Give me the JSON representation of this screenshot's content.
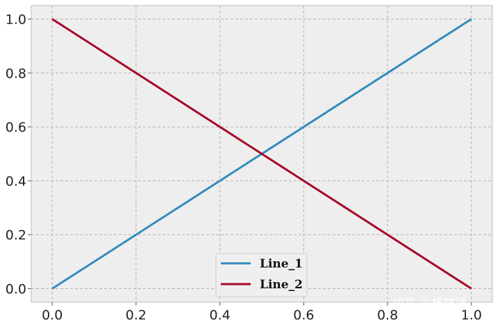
{
  "chart_data": {
    "type": "line",
    "title": "",
    "xlabel": "",
    "ylabel": "",
    "xlim": [
      -0.05,
      1.05
    ],
    "ylim": [
      -0.05,
      1.05
    ],
    "xticks": [
      0.0,
      0.2,
      0.4,
      0.6,
      0.8,
      1.0
    ],
    "yticks": [
      0.0,
      0.2,
      0.4,
      0.6,
      0.8,
      1.0
    ],
    "xtick_labels": [
      "0.0",
      "0.2",
      "0.4",
      "0.6",
      "0.8",
      "1.0"
    ],
    "ytick_labels": [
      "0.0",
      "0.2",
      "0.4",
      "0.6",
      "0.8",
      "1.0"
    ],
    "grid": true,
    "legend_position": "bottom-center",
    "series": [
      {
        "name": "Line_1",
        "color": "#348ABD",
        "x": [
          0.0,
          1.0
        ],
        "y": [
          0.0,
          1.0
        ]
      },
      {
        "name": "Line_2",
        "color": "#A60628",
        "x": [
          0.0,
          1.0
        ],
        "y": [
          1.0,
          0.0
        ]
      }
    ]
  },
  "watermark": "知乎 @杨航锋"
}
